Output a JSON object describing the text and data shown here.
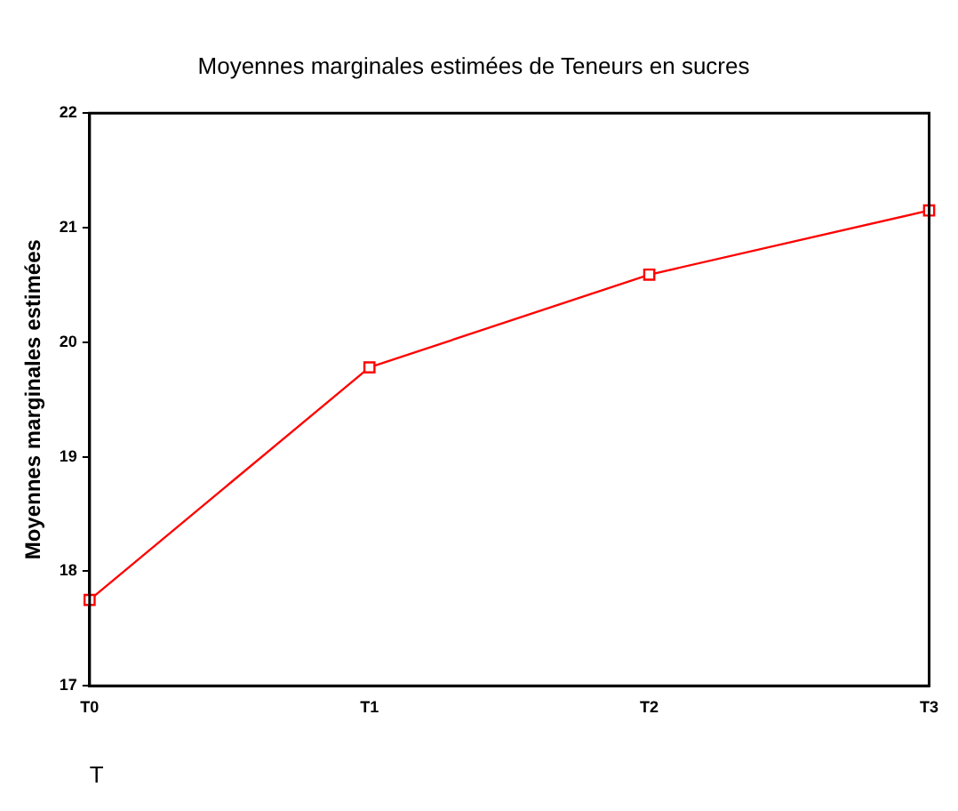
{
  "chart_data": {
    "type": "line",
    "title": "Moyennes marginales estimées de Teneurs en sucres",
    "xlabel": "T",
    "ylabel": "Moyennes marginales estimées",
    "categories": [
      "T0",
      "T1",
      "T2",
      "T3"
    ],
    "series": [
      {
        "color": "#ff0000",
        "values": [
          17.75,
          19.78,
          20.59,
          21.15
        ]
      }
    ],
    "ylim": [
      17,
      22
    ],
    "yticks": [
      17,
      18,
      19,
      20,
      21,
      22
    ],
    "grid": false,
    "legend": false,
    "marker": "square",
    "line_style": "solid"
  }
}
